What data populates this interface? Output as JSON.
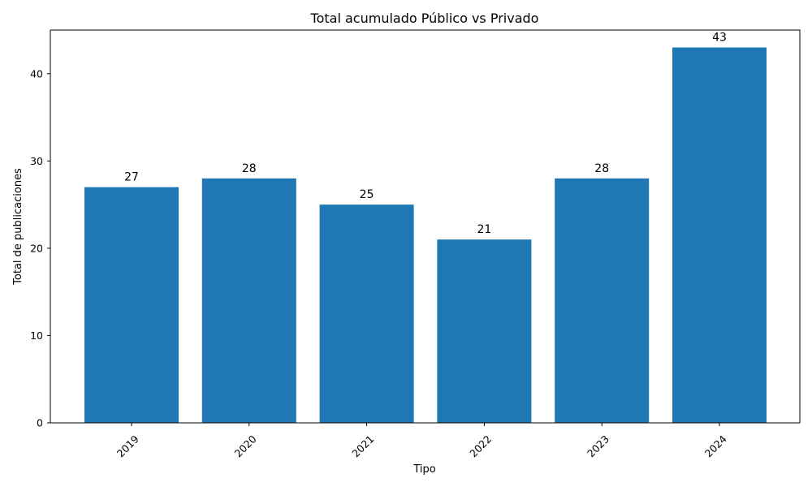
{
  "chart_data": {
    "type": "bar",
    "title": "Total acumulado Público vs Privado",
    "xlabel": "Tipo",
    "ylabel": "Total de publicaciones",
    "categories": [
      "2019",
      "2020",
      "2021",
      "2022",
      "2023",
      "2024"
    ],
    "values": [
      27,
      28,
      25,
      21,
      28,
      43
    ],
    "data_labels": [
      "27",
      "28",
      "25",
      "21",
      "28",
      "43"
    ],
    "ylim": [
      0,
      45
    ],
    "yticks": [
      0,
      10,
      20,
      30,
      40
    ],
    "grid": false,
    "legend": "none",
    "bar_color": "#1f77b4"
  }
}
